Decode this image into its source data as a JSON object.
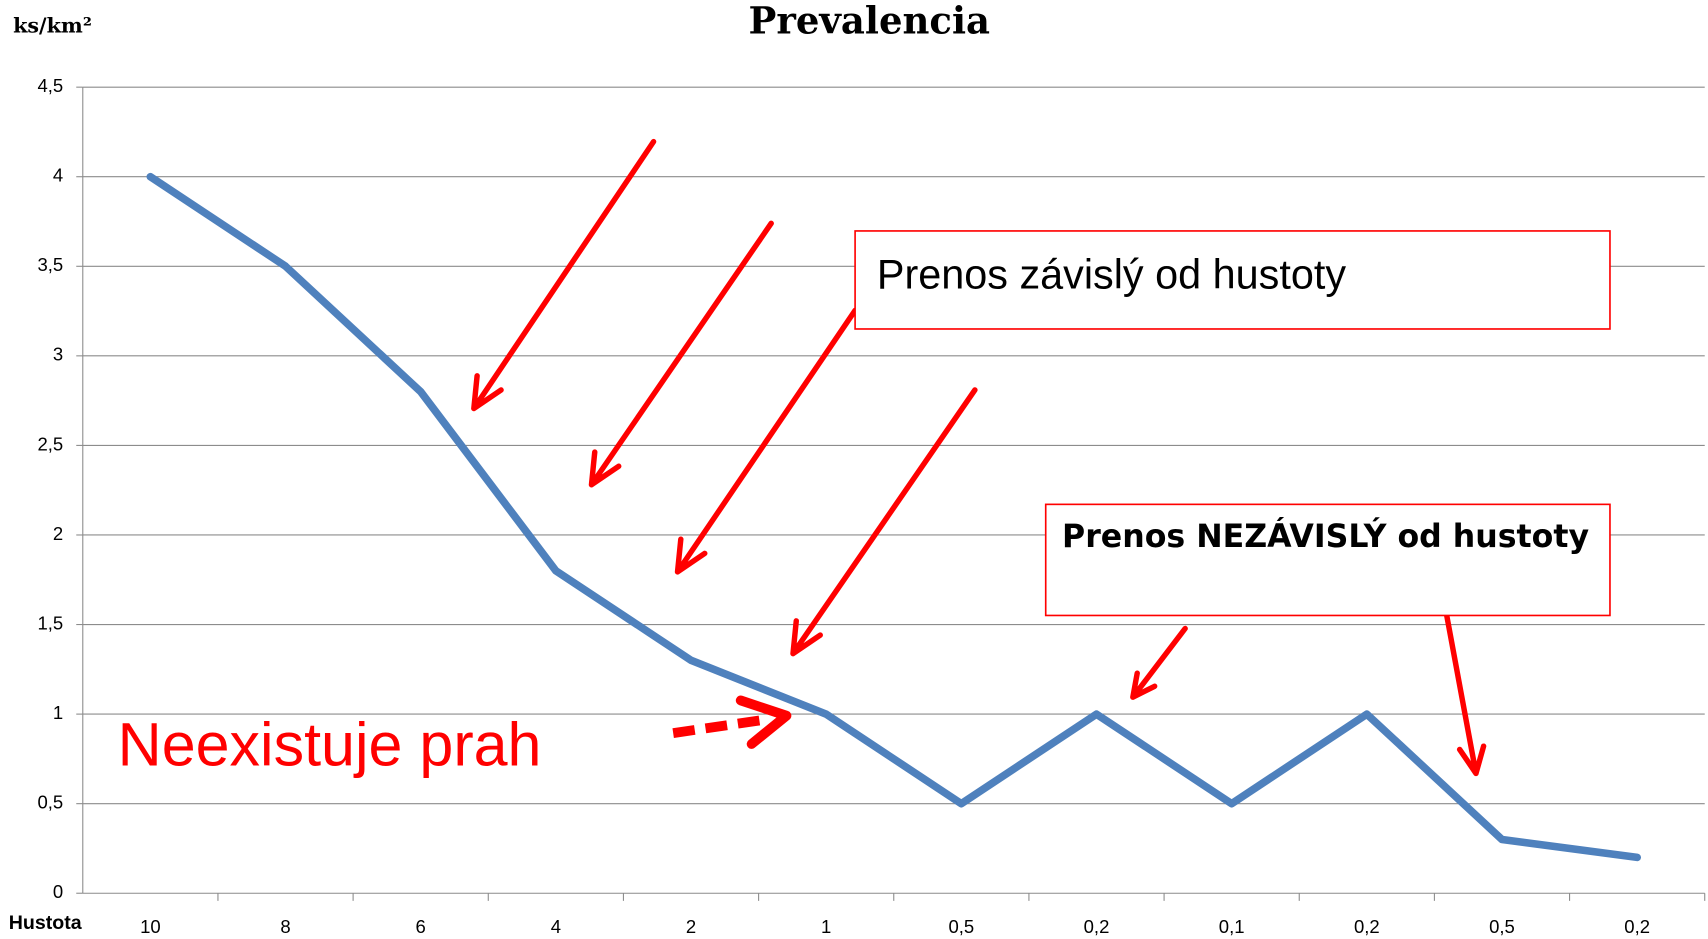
{
  "chart_data": {
    "type": "line",
    "title": "Prevalencia",
    "y_label": "ks/km²",
    "x_label": "Hustota",
    "categories": [
      "10",
      "8",
      "6",
      "4",
      "2",
      "1",
      "0,5",
      "0,2",
      "0,1",
      "0,2",
      "0,5",
      "0,2"
    ],
    "values": [
      4,
      3.5,
      2.8,
      1.8,
      1.3,
      1,
      0.5,
      1,
      0.5,
      1,
      0.3,
      0.2
    ],
    "color": "#4f81bd",
    "ylim": [
      0,
      4.5
    ],
    "yticks": [
      0,
      {
        "value": 0.5,
        "label": "0,5"
      },
      1,
      {
        "value": 1.5,
        "label": "1,5"
      },
      2,
      {
        "value": 2.5,
        "label": "2,5"
      },
      3,
      {
        "value": 3.5,
        "label": "3,5"
      },
      4,
      {
        "value": 4.5,
        "label": "4,5"
      }
    ],
    "grid": true,
    "annotations": [
      "Prenos závislý od hustoty",
      "Prenos NEZÁVISLÝ od hustoty",
      "Neexistuje prah"
    ]
  }
}
